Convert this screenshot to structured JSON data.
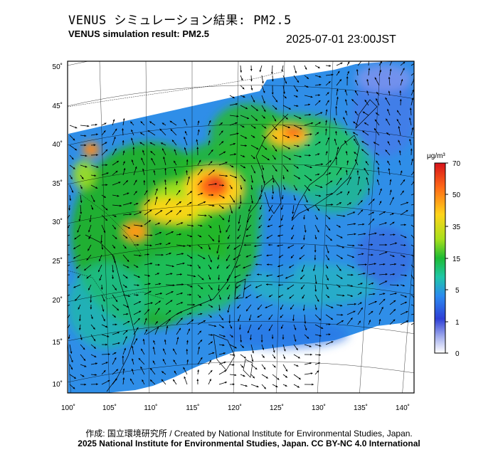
{
  "header": {
    "title_jp": "VENUS シミュレーション結果: PM2.5",
    "title_en": "VENUS simulation result: PM2.5",
    "timestamp": "2025-07-01 23:00JST"
  },
  "map": {
    "lat_labels": [
      "50˚",
      "45˚",
      "40˚",
      "35˚",
      "30˚",
      "25˚",
      "20˚",
      "15˚",
      "10˚"
    ],
    "lon_labels": [
      "100˚",
      "105˚",
      "110˚",
      "115˚",
      "120˚",
      "125˚",
      "130˚",
      "135˚",
      "140˚"
    ],
    "colors": {
      "background": "#ffffff",
      "ocean_low": "#3d6fe6",
      "ocean_very_low": "#8fa3ee",
      "land_mid": "#1fb21f",
      "land_high": "#ffd400",
      "hotspot": "#e83a1a",
      "coastline": "#000000"
    }
  },
  "colorbar": {
    "unit": "μg/m³",
    "ticks": [
      "70",
      "50",
      "35",
      "15",
      "5",
      "1",
      "0"
    ],
    "colors": [
      "#d7121a",
      "#ff6b17",
      "#ffe41a",
      "#8fe01c",
      "#1dbb34",
      "#23c8c0",
      "#2b8af0",
      "#2e3fd6",
      "#c9cff5",
      "#ffffff"
    ]
  },
  "footer": {
    "credit": "作成: 国立環境研究所 / Created by National Institute for Environmental Studies, Japan.",
    "license": "2025 National Institute for Environmental Studies, Japan. CC BY-NC 4.0 International"
  }
}
